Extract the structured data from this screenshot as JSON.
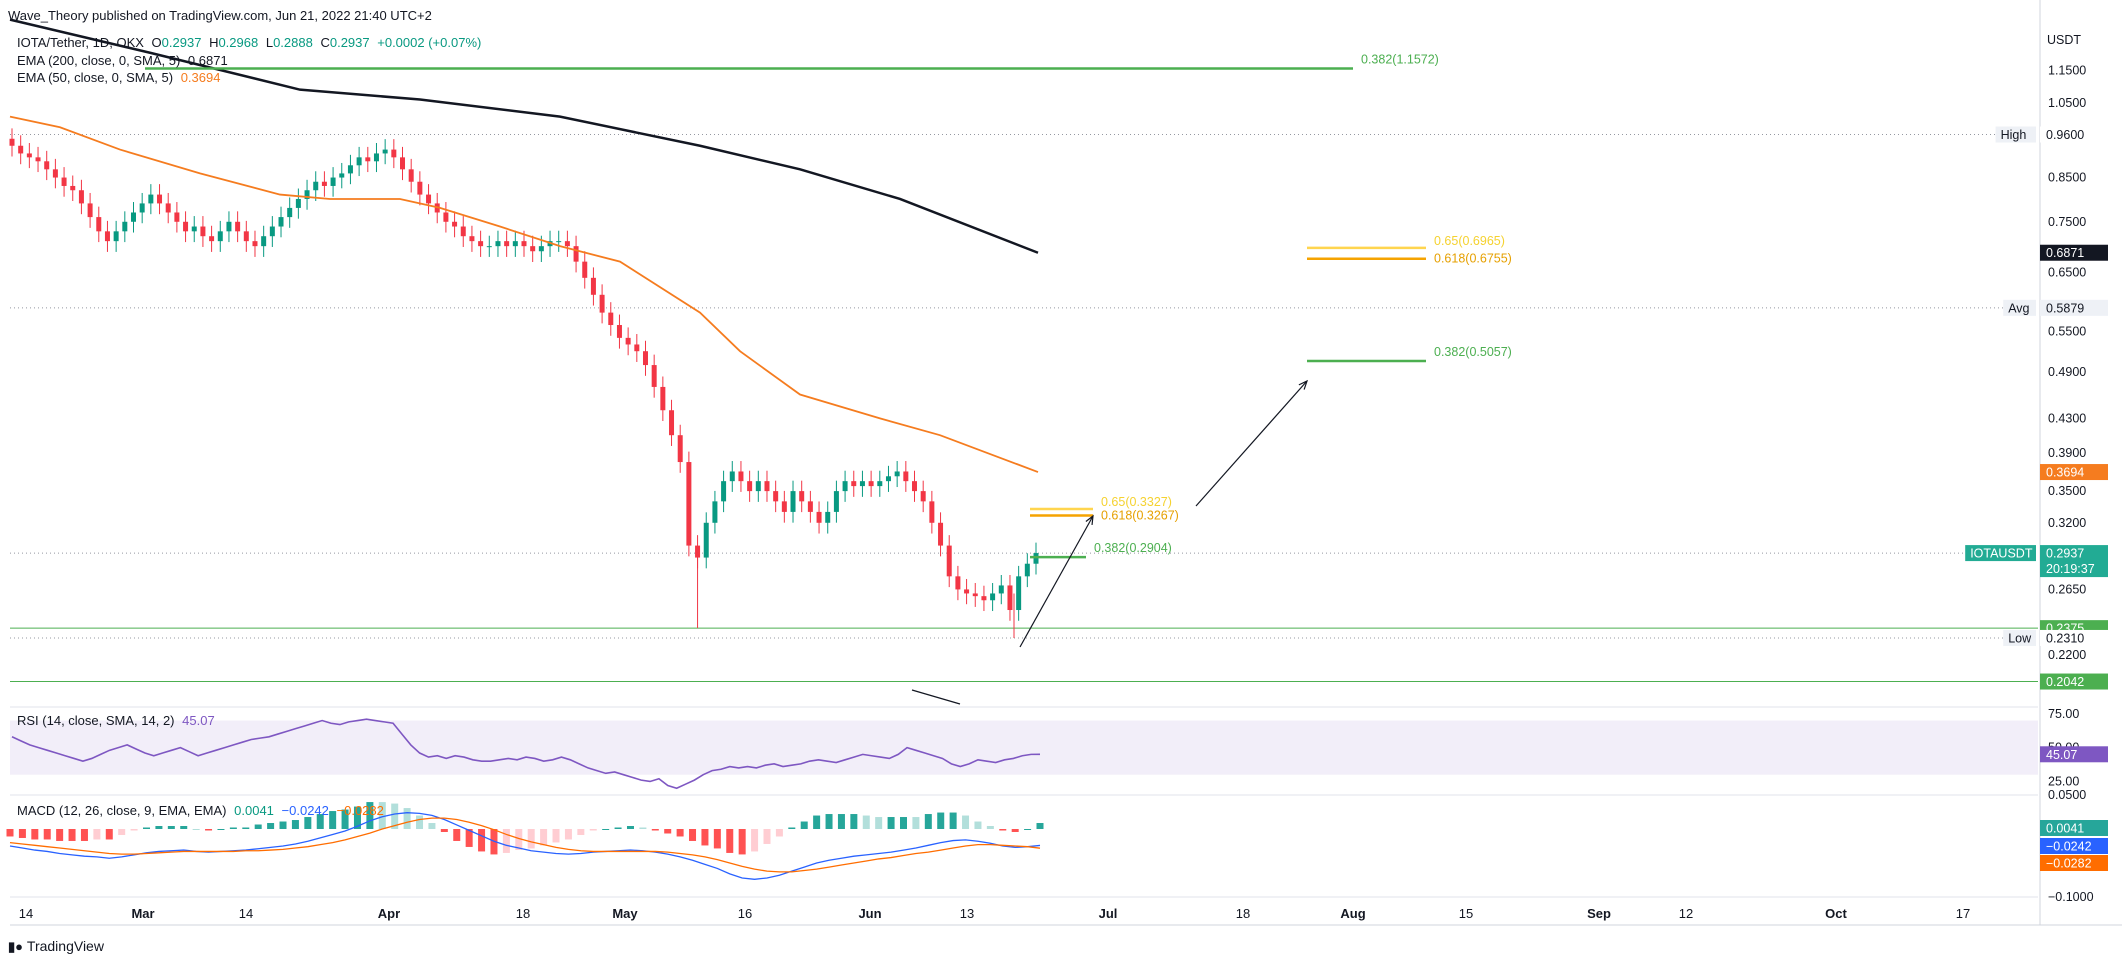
{
  "header": {
    "published": "Wave_Theory published on TradingView.com, Jun 21, 2022 21:40 UTC+2",
    "symbol": "IOTA/Tether, 1D, OKX",
    "o_label": "O",
    "o": "0.2937",
    "h_label": "H",
    "h": "0.2968",
    "l_label": "L",
    "l": "0.2888",
    "c_label": "C",
    "c": "0.2937",
    "change": "+0.0002 (+0.07%)",
    "ema200_label": "EMA (200, close, 0, SMA, 5)",
    "ema200_value": "0.6871",
    "ema50_label": "EMA (50, close, 0, SMA, 5)",
    "ema50_value": "0.3694"
  },
  "rsi_legend": {
    "label": "RSI (14, close, SMA, 14, 2)",
    "value": "45.07"
  },
  "macd_legend": {
    "label": "MACD (12, 26, close, 9, EMA, EMA)",
    "v1": "0.0041",
    "v2": "−0.0242",
    "v3": "−0.0282"
  },
  "currency": "USDT",
  "footer": "TradingView",
  "colors": {
    "up": "#089981",
    "down": "#f23645",
    "ema50": "#f57c1f",
    "ema200": "#131722",
    "fib_green": "#4caf50",
    "fib_gold": "#f5b700",
    "rsi": "#7e57c2",
    "macd": "#2962ff",
    "signal": "#ff6d00"
  },
  "chart_data": [
    {
      "type": "candlestick",
      "title": "IOTA/Tether, 1D, OKX",
      "x_ticks": [
        "14",
        "Mar",
        "14",
        "Apr",
        "18",
        "May",
        "16",
        "Jun",
        "13",
        "Jul",
        "18",
        "Aug",
        "15",
        "Sep",
        "12",
        "Oct",
        "17"
      ],
      "y_scale": "log",
      "y_ticks": [
        "1.1500",
        "1.0500",
        "0.9600",
        "0.8500",
        "0.7500",
        "0.6871",
        "0.6500",
        "0.5879",
        "0.5500",
        "0.4900",
        "0.4300",
        "0.3900",
        "0.3694",
        "0.3500",
        "0.3200",
        "0.2937",
        "0.2650",
        "0.2375",
        "0.2310",
        "0.2200",
        "0.2042"
      ],
      "ylim": [
        0.19,
        1.32
      ],
      "close_series": [
        0.93,
        0.91,
        0.9,
        0.89,
        0.87,
        0.85,
        0.83,
        0.82,
        0.79,
        0.76,
        0.73,
        0.71,
        0.73,
        0.75,
        0.77,
        0.79,
        0.81,
        0.79,
        0.77,
        0.75,
        0.73,
        0.74,
        0.72,
        0.71,
        0.73,
        0.75,
        0.73,
        0.71,
        0.7,
        0.72,
        0.74,
        0.76,
        0.78,
        0.8,
        0.82,
        0.84,
        0.83,
        0.85,
        0.86,
        0.88,
        0.9,
        0.89,
        0.91,
        0.92,
        0.9,
        0.87,
        0.84,
        0.81,
        0.79,
        0.77,
        0.75,
        0.74,
        0.72,
        0.71,
        0.7,
        0.7,
        0.71,
        0.7,
        0.71,
        0.7,
        0.69,
        0.7,
        0.71,
        0.71,
        0.7,
        0.67,
        0.64,
        0.61,
        0.58,
        0.56,
        0.54,
        0.53,
        0.52,
        0.5,
        0.47,
        0.44,
        0.41,
        0.38,
        0.3,
        0.29,
        0.32,
        0.34,
        0.36,
        0.37,
        0.36,
        0.35,
        0.36,
        0.35,
        0.34,
        0.33,
        0.35,
        0.34,
        0.33,
        0.32,
        0.33,
        0.35,
        0.36,
        0.355,
        0.36,
        0.355,
        0.36,
        0.365,
        0.37,
        0.36,
        0.35,
        0.34,
        0.32,
        0.3,
        0.275,
        0.265,
        0.262,
        0.26,
        0.257,
        0.262,
        0.268,
        0.25,
        0.275,
        0.285,
        0.2937
      ],
      "ema50_value": 0.3694,
      "ema200_value": 0.6871,
      "horizontal_lines": [
        {
          "label": "High",
          "value": 0.96
        },
        {
          "label": "Avg",
          "value": 0.5879
        },
        {
          "label": "",
          "value": 0.2937
        },
        {
          "label": "",
          "value": 0.2375
        },
        {
          "label": "Low",
          "value": 0.231
        },
        {
          "label": "",
          "value": 0.2042
        }
      ],
      "fib_levels": [
        {
          "text": "0.382(1.1572)",
          "value": 1.1572
        },
        {
          "text": "0.65(0.6965)",
          "value": 0.6965
        },
        {
          "text": "0.618(0.6755)",
          "value": 0.6755
        },
        {
          "text": "0.382(0.5057)",
          "value": 0.5057
        },
        {
          "text": "0.65(0.3327)",
          "value": 0.3327
        },
        {
          "text": "0.618(0.3267)",
          "value": 0.3267
        },
        {
          "text": "0.382(0.2904)",
          "value": 0.2904
        }
      ],
      "price_labels": [
        {
          "text": "High",
          "value": "0.9600"
        },
        {
          "text": "",
          "value": "0.6871"
        },
        {
          "text": "Avg",
          "value": "0.5879"
        },
        {
          "text": "",
          "value": "0.3694"
        },
        {
          "text": "IOTAUSDT",
          "value": "0.2937",
          "countdown": "20:19:37"
        },
        {
          "text": "",
          "value": "0.2375"
        },
        {
          "text": "Low",
          "value": "0.2310"
        },
        {
          "text": "",
          "value": "0.2042"
        }
      ]
    },
    {
      "type": "line",
      "title": "RSI (14, close, SMA, 14, 2)",
      "y_ticks": [
        "75.00",
        "50.00",
        "25.00"
      ],
      "ylim": [
        15,
        80
      ],
      "band": [
        30,
        70
      ],
      "current": 45.07,
      "values": [
        58,
        55,
        52,
        50,
        48,
        46,
        44,
        42,
        40,
        42,
        45,
        48,
        50,
        52,
        49,
        46,
        44,
        46,
        48,
        50,
        47,
        44,
        46,
        48,
        50,
        52,
        54,
        56,
        57,
        58,
        60,
        62,
        64,
        66,
        68,
        70,
        68,
        67,
        69,
        70,
        71,
        70,
        69,
        68,
        60,
        52,
        46,
        43,
        44,
        42,
        44,
        43,
        41,
        40,
        40,
        41,
        42,
        41,
        43,
        42,
        40,
        41,
        43,
        41,
        38,
        35,
        33,
        31,
        32,
        30,
        28,
        26,
        25,
        27,
        22,
        20,
        23,
        26,
        30,
        33,
        34,
        36,
        35,
        36,
        35,
        37,
        38,
        36,
        37,
        38,
        40,
        41,
        40,
        39,
        41,
        43,
        45,
        44,
        43,
        42,
        45,
        50,
        48,
        46,
        44,
        42,
        38,
        36,
        38,
        41,
        40,
        39,
        41,
        42,
        44,
        45,
        45.07
      ]
    },
    {
      "type": "line",
      "title": "MACD (12, 26, close, 9, EMA, EMA)",
      "y_ticks": [
        "0.0500",
        "−0.1000"
      ],
      "ylim": [
        -0.1,
        0.05
      ],
      "macd_current": -0.0242,
      "signal_current": -0.0282,
      "histogram_current": 0.0041,
      "macd": [
        -0.025,
        -0.028,
        -0.031,
        -0.033,
        -0.036,
        -0.038,
        -0.04,
        -0.041,
        -0.043,
        -0.041,
        -0.038,
        -0.035,
        -0.033,
        -0.032,
        -0.031,
        -0.033,
        -0.034,
        -0.033,
        -0.032,
        -0.031,
        -0.029,
        -0.027,
        -0.025,
        -0.022,
        -0.018,
        -0.013,
        -0.008,
        -0.003,
        0.004,
        0.012,
        0.018,
        0.022,
        0.024,
        0.023,
        0.02,
        0.014,
        0.006,
        -0.002,
        -0.01,
        -0.018,
        -0.024,
        -0.028,
        -0.032,
        -0.034,
        -0.036,
        -0.037,
        -0.036,
        -0.034,
        -0.033,
        -0.032,
        -0.031,
        -0.032,
        -0.034,
        -0.037,
        -0.041,
        -0.046,
        -0.052,
        -0.058,
        -0.066,
        -0.072,
        -0.074,
        -0.072,
        -0.068,
        -0.062,
        -0.056,
        -0.05,
        -0.046,
        -0.043,
        -0.04,
        -0.038,
        -0.036,
        -0.034,
        -0.031,
        -0.028,
        -0.024,
        -0.02,
        -0.017,
        -0.016,
        -0.018,
        -0.021,
        -0.025,
        -0.027,
        -0.026,
        -0.0242
      ],
      "signal": [
        -0.02,
        -0.022,
        -0.024,
        -0.026,
        -0.028,
        -0.03,
        -0.032,
        -0.034,
        -0.036,
        -0.037,
        -0.037,
        -0.036,
        -0.035,
        -0.034,
        -0.033,
        -0.033,
        -0.033,
        -0.033,
        -0.033,
        -0.032,
        -0.032,
        -0.031,
        -0.03,
        -0.028,
        -0.026,
        -0.023,
        -0.02,
        -0.016,
        -0.011,
        -0.006,
        0.0,
        0.005,
        0.01,
        0.014,
        0.016,
        0.016,
        0.014,
        0.01,
        0.005,
        -0.001,
        -0.008,
        -0.014,
        -0.019,
        -0.023,
        -0.027,
        -0.03,
        -0.032,
        -0.033,
        -0.033,
        -0.033,
        -0.033,
        -0.033,
        -0.033,
        -0.034,
        -0.036,
        -0.038,
        -0.041,
        -0.045,
        -0.05,
        -0.055,
        -0.059,
        -0.062,
        -0.063,
        -0.063,
        -0.061,
        -0.059,
        -0.056,
        -0.053,
        -0.05,
        -0.047,
        -0.044,
        -0.042,
        -0.039,
        -0.036,
        -0.034,
        -0.031,
        -0.028,
        -0.025,
        -0.023,
        -0.023,
        -0.024,
        -0.025,
        -0.026,
        -0.0282
      ]
    }
  ]
}
